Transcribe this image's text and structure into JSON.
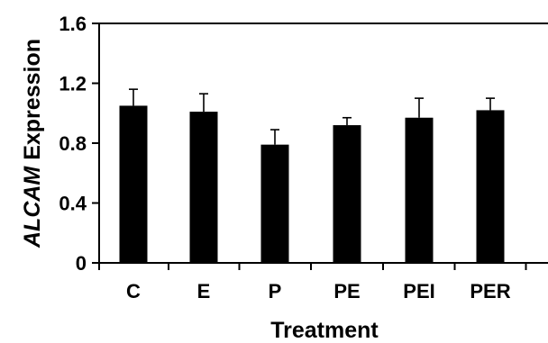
{
  "chart_data": {
    "type": "bar",
    "title": "",
    "xlabel": "Treatment",
    "ylabel": "ALCAM Expression",
    "ylabel_parts": {
      "gene": "ALCAM",
      "suffix": " Expression"
    },
    "categories": [
      "C",
      "E",
      "P",
      "PE",
      "PEI",
      "PER"
    ],
    "values": [
      1.05,
      1.01,
      0.79,
      0.92,
      0.97,
      1.02
    ],
    "error_bars": [
      0.11,
      0.12,
      0.1,
      0.05,
      0.13,
      0.08
    ],
    "ylim": [
      0,
      1.6
    ],
    "yticks": [
      0,
      0.4,
      0.8,
      1.2,
      1.6
    ],
    "ytick_labels": [
      "0",
      "0.4",
      "0.8",
      "1.2",
      "1.6"
    ],
    "grid": false,
    "legend": "none",
    "bar_color": "#000000",
    "frame_color": "#000000"
  }
}
